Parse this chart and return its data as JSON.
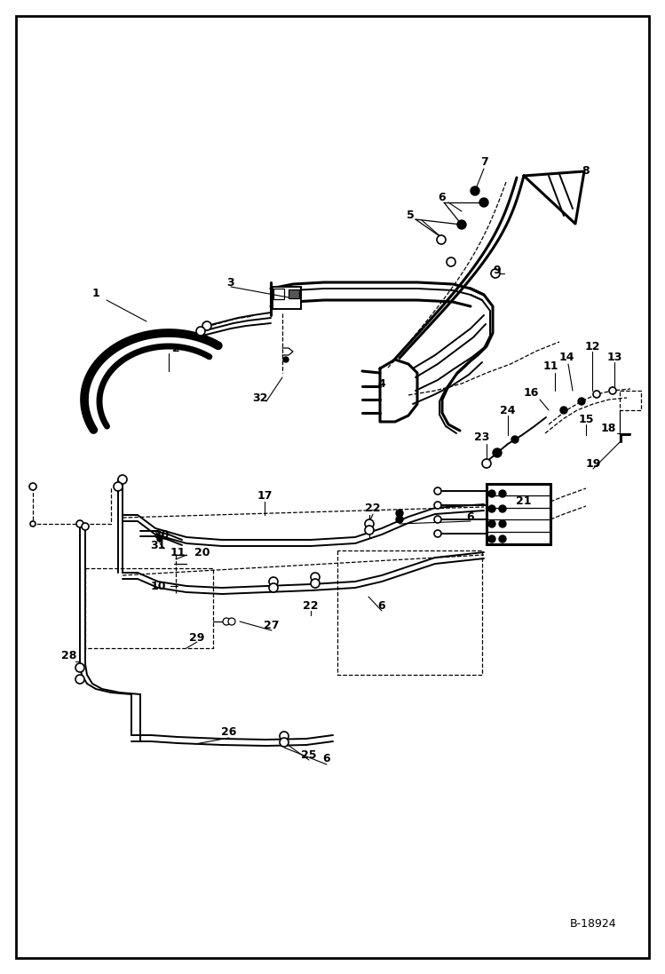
{
  "bg_color": "#ffffff",
  "border_color": "#000000",
  "line_color": "#000000",
  "lw_thick": 2.2,
  "lw_med": 1.4,
  "lw_thin": 0.9,
  "watermark": "B-18924"
}
